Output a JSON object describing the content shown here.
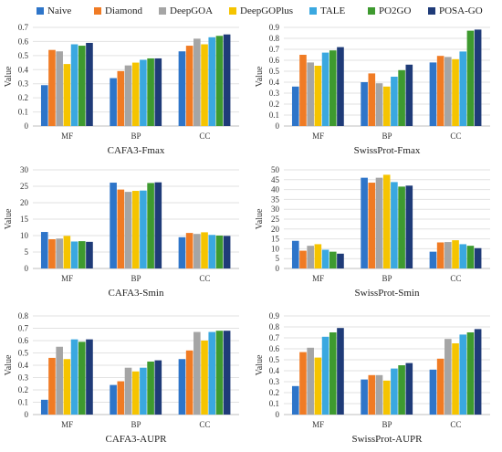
{
  "legend": [
    {
      "name": "Naive",
      "color": "#2e75c9"
    },
    {
      "name": "Diamond",
      "color": "#f07b24"
    },
    {
      "name": "DeepGOA",
      "color": "#a5a5a5"
    },
    {
      "name": "DeepGOPlus",
      "color": "#f5c400"
    },
    {
      "name": "TALE",
      "color": "#3aa8e0"
    },
    {
      "name": "PO2GO",
      "color": "#3e9a2f"
    },
    {
      "name": "POSA-GO",
      "color": "#1f3b78"
    }
  ],
  "chart_data": [
    {
      "type": "bar",
      "title": "CAFA3-Fmax",
      "ylabel": "Value",
      "categories": [
        "MF",
        "BP",
        "CC"
      ],
      "ylim": [
        0,
        0.7
      ],
      "yticks": [
        "0",
        "0.1",
        "0.2",
        "0.3",
        "0.4",
        "0.5",
        "0.6",
        "0.7"
      ],
      "grid": true,
      "series": [
        {
          "name": "Naive",
          "values": [
            0.29,
            0.34,
            0.53
          ]
        },
        {
          "name": "Diamond",
          "values": [
            0.54,
            0.39,
            0.57
          ]
        },
        {
          "name": "DeepGOA",
          "values": [
            0.53,
            0.43,
            0.62
          ]
        },
        {
          "name": "DeepGOPlus",
          "values": [
            0.44,
            0.45,
            0.58
          ]
        },
        {
          "name": "TALE",
          "values": [
            0.58,
            0.47,
            0.63
          ]
        },
        {
          "name": "PO2GO",
          "values": [
            0.57,
            0.48,
            0.64
          ]
        },
        {
          "name": "POSA-GO",
          "values": [
            0.59,
            0.48,
            0.65
          ]
        }
      ]
    },
    {
      "type": "bar",
      "title": "SwissProt-Fmax",
      "ylabel": "Value",
      "categories": [
        "MF",
        "BP",
        "CC"
      ],
      "ylim": [
        0,
        0.9
      ],
      "yticks": [
        "0",
        "0.1",
        "0.2",
        "0.3",
        "0.4",
        "0.5",
        "0.6",
        "0.7",
        "0.8",
        "0.9"
      ],
      "grid": true,
      "series": [
        {
          "name": "Naive",
          "values": [
            0.36,
            0.4,
            0.58
          ]
        },
        {
          "name": "Diamond",
          "values": [
            0.65,
            0.48,
            0.64
          ]
        },
        {
          "name": "DeepGOA",
          "values": [
            0.58,
            0.39,
            0.63
          ]
        },
        {
          "name": "DeepGOPlus",
          "values": [
            0.55,
            0.36,
            0.61
          ]
        },
        {
          "name": "TALE",
          "values": [
            0.67,
            0.45,
            0.68
          ]
        },
        {
          "name": "PO2GO",
          "values": [
            0.69,
            0.51,
            0.87
          ]
        },
        {
          "name": "POSA-GO",
          "values": [
            0.72,
            0.56,
            0.88
          ]
        }
      ]
    },
    {
      "type": "bar",
      "title": "CAFA3-Smin",
      "ylabel": "Value",
      "categories": [
        "MF",
        "BP",
        "CC"
      ],
      "ylim": [
        0,
        30
      ],
      "yticks": [
        "0",
        "5",
        "10",
        "15",
        "20",
        "25",
        "30"
      ],
      "grid": true,
      "series": [
        {
          "name": "Naive",
          "values": [
            11.1,
            26.1,
            9.5
          ]
        },
        {
          "name": "Diamond",
          "values": [
            8.9,
            24.0,
            10.8
          ]
        },
        {
          "name": "DeepGOA",
          "values": [
            9.1,
            23.3,
            10.5
          ]
        },
        {
          "name": "DeepGOPlus",
          "values": [
            9.9,
            23.6,
            11.0
          ]
        },
        {
          "name": "TALE",
          "values": [
            8.2,
            23.7,
            10.2
          ]
        },
        {
          "name": "PO2GO",
          "values": [
            8.3,
            26.0,
            10.0
          ]
        },
        {
          "name": "POSA-GO",
          "values": [
            8.1,
            26.2,
            9.9
          ]
        }
      ]
    },
    {
      "type": "bar",
      "title": "SwissProt-Smin",
      "ylabel": "Value",
      "categories": [
        "MF",
        "BP",
        "CC"
      ],
      "ylim": [
        0,
        50
      ],
      "yticks": [
        "0",
        "5",
        "10",
        "15",
        "20",
        "25",
        "30",
        "35",
        "40",
        "45",
        "50"
      ],
      "grid": true,
      "series": [
        {
          "name": "Naive",
          "values": [
            14.0,
            46.0,
            8.5
          ]
        },
        {
          "name": "Diamond",
          "values": [
            9.0,
            43.5,
            13.2
          ]
        },
        {
          "name": "DeepGOA",
          "values": [
            11.5,
            46.0,
            13.4
          ]
        },
        {
          "name": "DeepGOPlus",
          "values": [
            12.3,
            47.5,
            14.3
          ]
        },
        {
          "name": "TALE",
          "values": [
            9.5,
            43.8,
            12.3
          ]
        },
        {
          "name": "PO2GO",
          "values": [
            8.5,
            41.5,
            11.5
          ]
        },
        {
          "name": "POSA-GO",
          "values": [
            7.5,
            42.0,
            10.3
          ]
        }
      ]
    },
    {
      "type": "bar",
      "title": "CAFA3-AUPR",
      "ylabel": "Value",
      "categories": [
        "MF",
        "BP",
        "CC"
      ],
      "ylim": [
        0,
        0.8
      ],
      "yticks": [
        "0",
        "0.1",
        "0.2",
        "0.3",
        "0.4",
        "0.5",
        "0.6",
        "0.7",
        "0.8"
      ],
      "grid": true,
      "series": [
        {
          "name": "Naive",
          "values": [
            0.12,
            0.24,
            0.45
          ]
        },
        {
          "name": "Diamond",
          "values": [
            0.46,
            0.27,
            0.52
          ]
        },
        {
          "name": "DeepGOA",
          "values": [
            0.55,
            0.38,
            0.67
          ]
        },
        {
          "name": "DeepGOPlus",
          "values": [
            0.45,
            0.35,
            0.6
          ]
        },
        {
          "name": "TALE",
          "values": [
            0.61,
            0.38,
            0.67
          ]
        },
        {
          "name": "PO2GO",
          "values": [
            0.59,
            0.43,
            0.68
          ]
        },
        {
          "name": "POSA-GO",
          "values": [
            0.61,
            0.44,
            0.68
          ]
        }
      ]
    },
    {
      "type": "bar",
      "title": "SwissProt-AUPR",
      "ylabel": "Value",
      "categories": [
        "MF",
        "BP",
        "CC"
      ],
      "ylim": [
        0,
        0.9
      ],
      "yticks": [
        "0",
        "0.1",
        "0.2",
        "0.3",
        "0.4",
        "0.5",
        "0.6",
        "0.7",
        "0.8",
        "0.9"
      ],
      "grid": true,
      "series": [
        {
          "name": "Naive",
          "values": [
            0.26,
            0.32,
            0.41
          ]
        },
        {
          "name": "Diamond",
          "values": [
            0.57,
            0.36,
            0.51
          ]
        },
        {
          "name": "DeepGOA",
          "values": [
            0.61,
            0.36,
            0.69
          ]
        },
        {
          "name": "DeepGOPlus",
          "values": [
            0.52,
            0.31,
            0.65
          ]
        },
        {
          "name": "TALE",
          "values": [
            0.71,
            0.42,
            0.73
          ]
        },
        {
          "name": "PO2GO",
          "values": [
            0.75,
            0.45,
            0.75
          ]
        },
        {
          "name": "POSA-GO",
          "values": [
            0.79,
            0.47,
            0.78
          ]
        }
      ]
    }
  ]
}
